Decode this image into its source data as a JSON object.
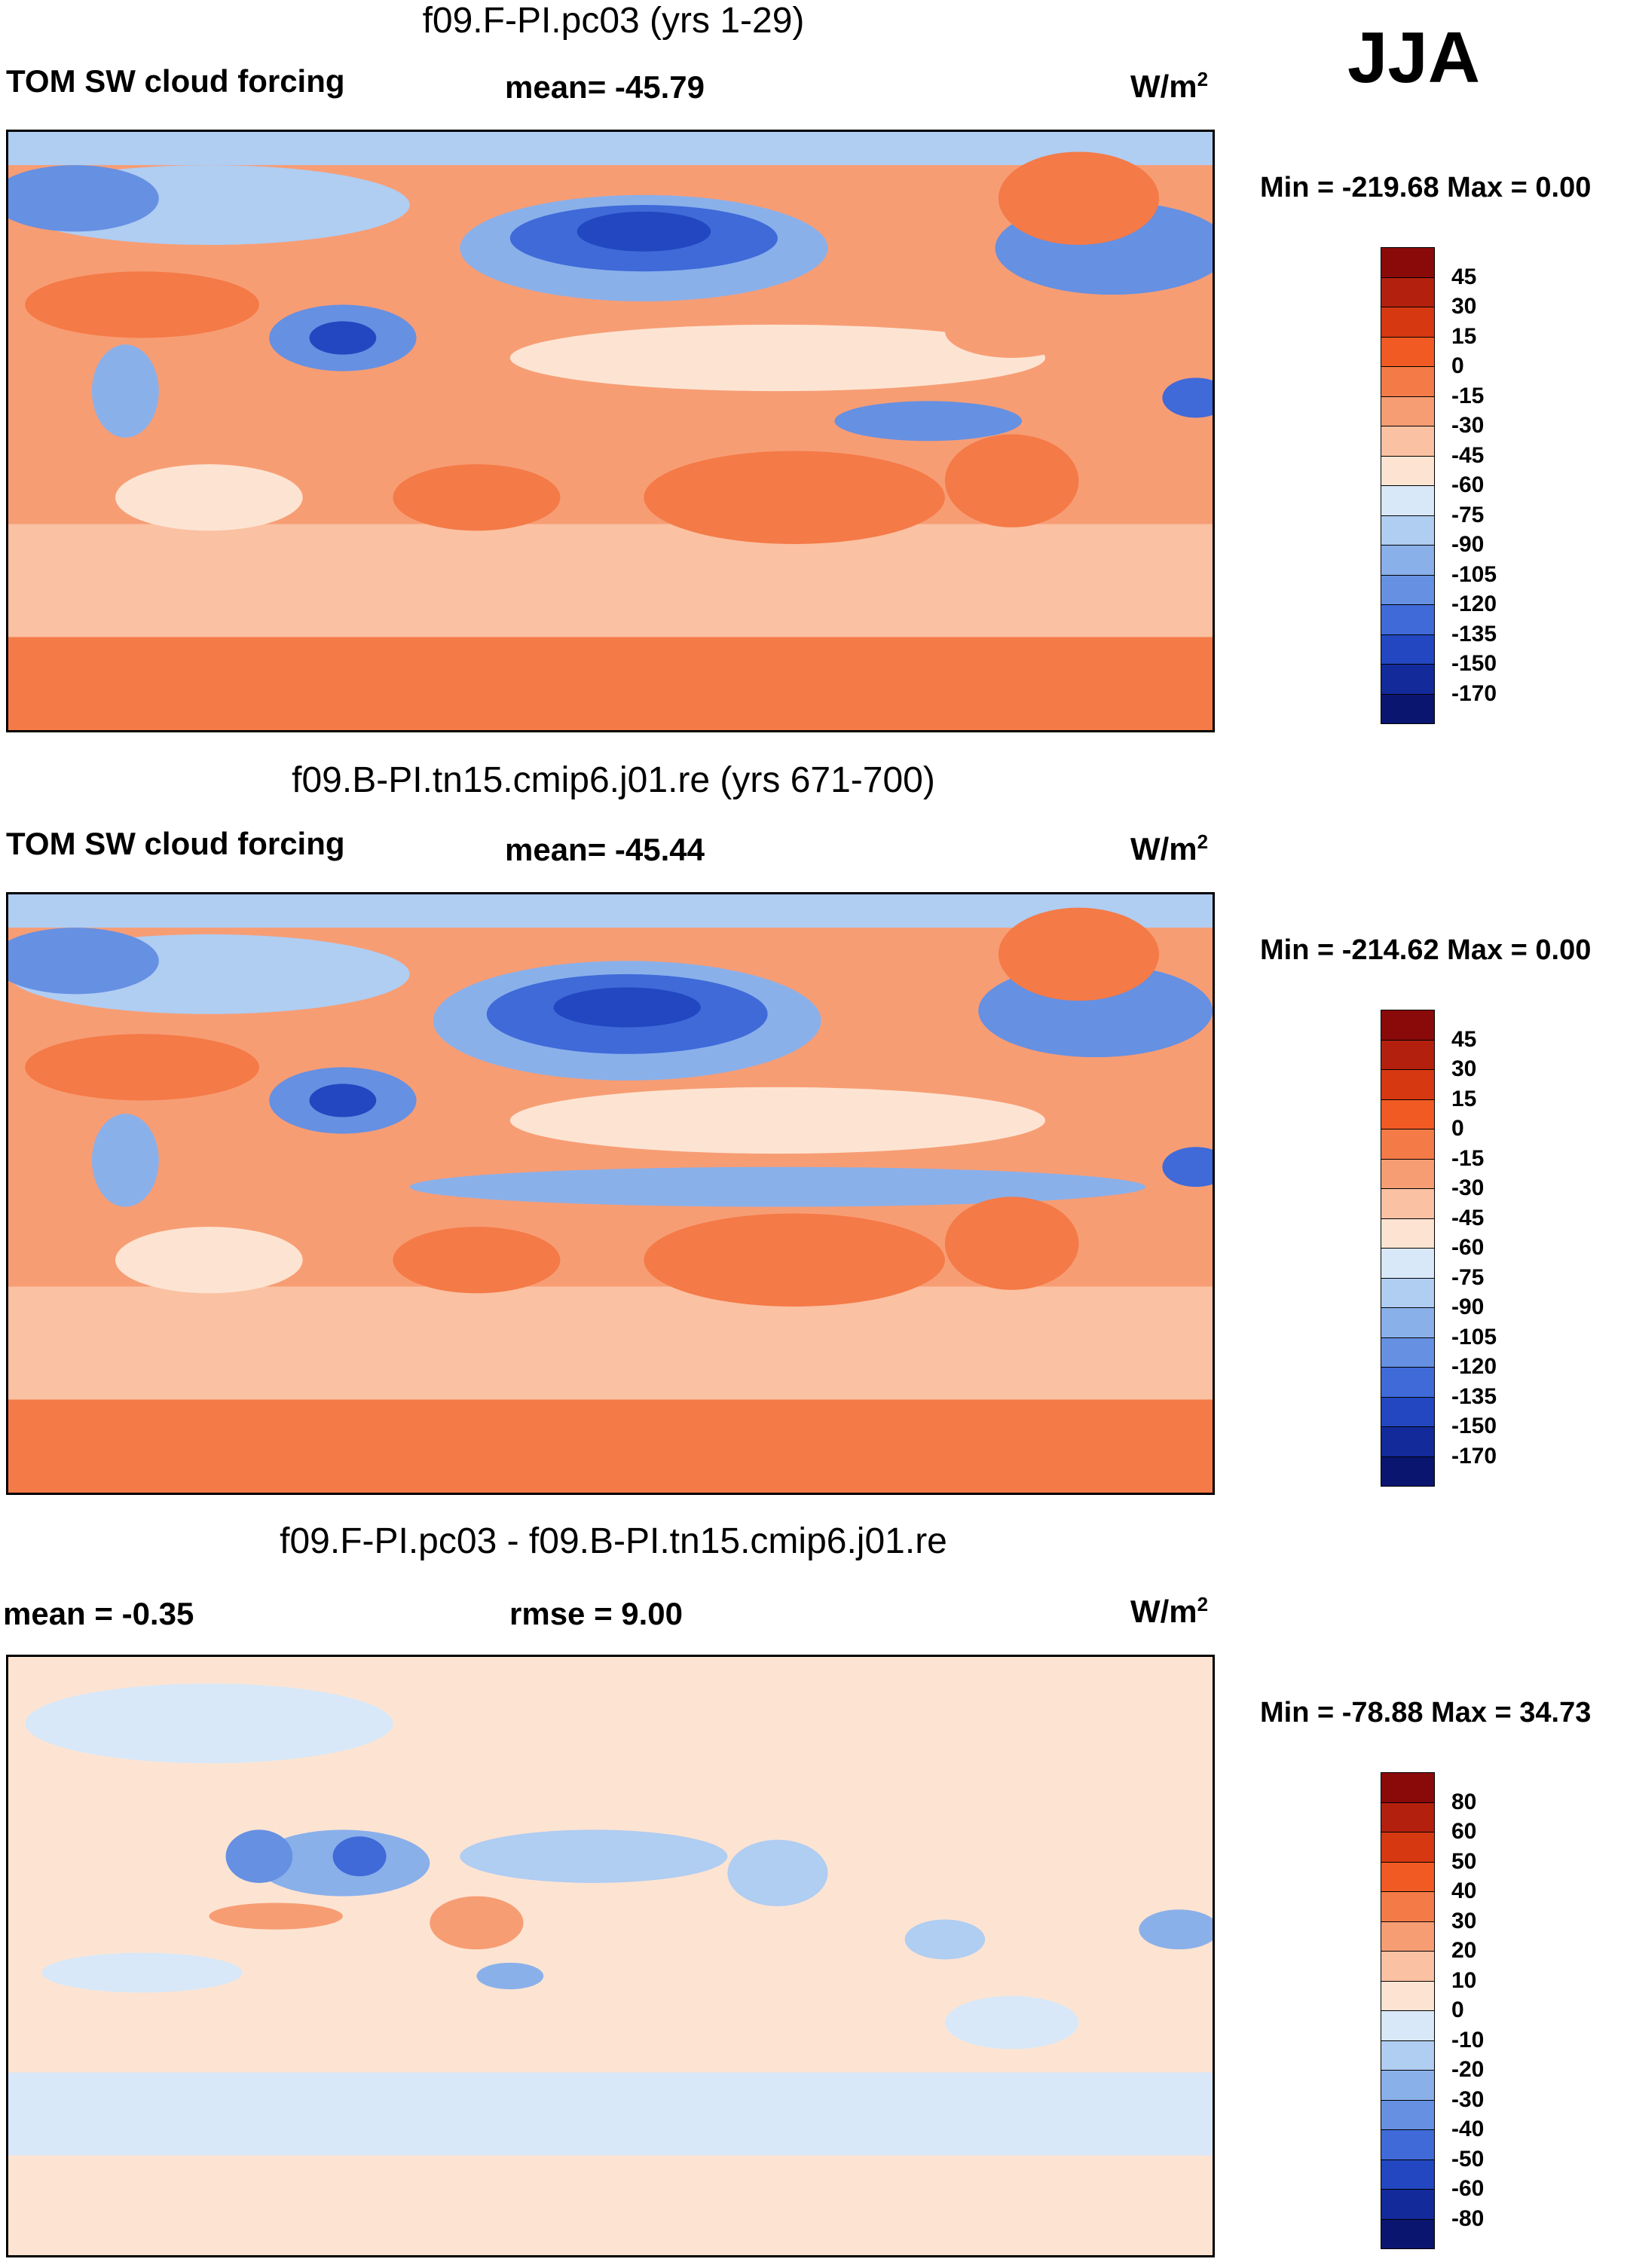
{
  "season": "JJA",
  "panels": [
    {
      "title": "f09.F-PI.pc03 (yrs 1-29)",
      "left_label": "TOM SW cloud forcing",
      "center_label": "mean= -45.79",
      "units": "W/m",
      "units_sup": "2",
      "minmax": "Min = -219.68 Max =   0.00",
      "colorbar": {
        "labels": [
          "45",
          "30",
          "15",
          "0",
          "-15",
          "-30",
          "-45",
          "-60",
          "-75",
          "-90",
          "-105",
          "-120",
          "-135",
          "-150",
          "-170"
        ],
        "colors": [
          "#8a0a0a",
          "#b3200e",
          "#d63811",
          "#f15a22",
          "#f47a47",
          "#f79d74",
          "#fac1a2",
          "#fde4d2",
          "#d8e8f8",
          "#b0cdf2",
          "#8ab0ea",
          "#6690e2",
          "#3f6ad8",
          "#2247c0",
          "#122a9a",
          "#0a1570"
        ]
      }
    },
    {
      "title": "f09.B-PI.tn15.cmip6.j01.re (yrs 671-700)",
      "left_label": "TOM SW cloud forcing",
      "center_label": "mean= -45.44",
      "units": "W/m",
      "units_sup": "2",
      "minmax": "Min = -214.62 Max =   0.00",
      "colorbar": {
        "labels": [
          "45",
          "30",
          "15",
          "0",
          "-15",
          "-30",
          "-45",
          "-60",
          "-75",
          "-90",
          "-105",
          "-120",
          "-135",
          "-150",
          "-170"
        ],
        "colors": [
          "#8a0a0a",
          "#b3200e",
          "#d63811",
          "#f15a22",
          "#f47a47",
          "#f79d74",
          "#fac1a2",
          "#fde4d2",
          "#d8e8f8",
          "#b0cdf2",
          "#8ab0ea",
          "#6690e2",
          "#3f6ad8",
          "#2247c0",
          "#122a9a",
          "#0a1570"
        ]
      }
    },
    {
      "title": "f09.F-PI.pc03 - f09.B-PI.tn15.cmip6.j01.re",
      "left_label": "mean =  -0.35",
      "center_label": "rmse =   9.00",
      "units": "W/m",
      "units_sup": "2",
      "minmax": "Min = -78.88 Max =  34.73",
      "colorbar": {
        "labels": [
          "80",
          "60",
          "50",
          "40",
          "30",
          "20",
          "10",
          "0",
          "-10",
          "-20",
          "-30",
          "-40",
          "-50",
          "-60",
          "-80"
        ],
        "colors": [
          "#8a0a0a",
          "#b3200e",
          "#d63811",
          "#f15a22",
          "#f47a47",
          "#f79d74",
          "#fac1a2",
          "#fde4d2",
          "#d8e8f8",
          "#b0cdf2",
          "#8ab0ea",
          "#6690e2",
          "#3f6ad8",
          "#2247c0",
          "#122a9a",
          "#0a1570"
        ]
      }
    }
  ]
}
